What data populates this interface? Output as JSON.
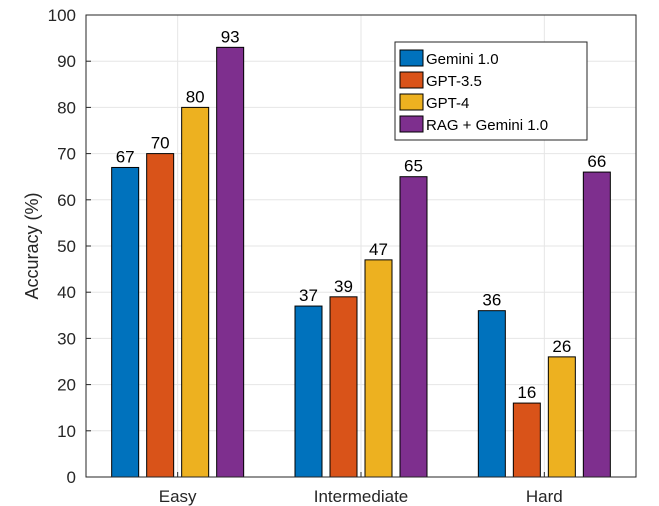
{
  "chart_data": {
    "type": "bar",
    "title": "",
    "xlabel": "",
    "ylabel": "Accuracy (%)",
    "categories": [
      "Easy",
      "Intermediate",
      "Hard"
    ],
    "ylim": [
      0,
      100
    ],
    "yticks": [
      0,
      10,
      20,
      30,
      40,
      50,
      60,
      70,
      80,
      90,
      100
    ],
    "grid": true,
    "legend_position": "top-right",
    "series": [
      {
        "name": "Gemini 1.0",
        "color": "#0072BD",
        "values": [
          67,
          37,
          36
        ]
      },
      {
        "name": "GPT-3.5",
        "color": "#D95319",
        "values": [
          70,
          39,
          16
        ]
      },
      {
        "name": "GPT-4",
        "color": "#EDB120",
        "values": [
          80,
          47,
          26
        ]
      },
      {
        "name": "RAG + Gemini 1.0",
        "color": "#7E2F8E",
        "values": [
          93,
          65,
          66
        ]
      }
    ]
  }
}
